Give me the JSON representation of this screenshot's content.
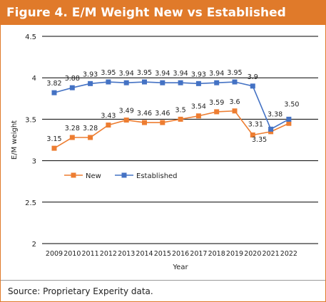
{
  "figure": {
    "title": "Figure 4. E/M Weight New vs Established",
    "source": "Source: Proprietary Experity data."
  },
  "colors": {
    "accent": "#e07a2a",
    "new": "#ed7d31",
    "established": "#4472c4",
    "grid": "#000000"
  },
  "chart_data": {
    "type": "line",
    "title": "",
    "xlabel": "Year",
    "ylabel": "E/M weight",
    "ylim": [
      2,
      4.5
    ],
    "yticks": [
      "2",
      "2.5",
      "3",
      "3.5",
      "4",
      "4.5"
    ],
    "grid": "horizontal",
    "legend_position": "center-left",
    "categories": [
      "2009",
      "2010",
      "2011",
      "2012",
      "2013",
      "2014",
      "2015",
      "2016",
      "2017",
      "2018",
      "2019",
      "2020",
      "2021",
      "2022"
    ],
    "series": [
      {
        "name": "New",
        "marker": "square",
        "values": [
          3.15,
          3.28,
          3.28,
          3.43,
          3.49,
          3.46,
          3.46,
          3.5,
          3.54,
          3.59,
          3.6,
          3.31,
          3.35,
          3.45
        ],
        "labels": [
          "3.15",
          "3.28",
          "3.28",
          "3.43",
          "3.49",
          "3.46",
          "3.46",
          "3.5",
          "3.54",
          "3.59",
          "3.6",
          "3.31",
          "3.35",
          ""
        ]
      },
      {
        "name": "Established",
        "marker": "square",
        "values": [
          3.82,
          3.88,
          3.93,
          3.95,
          3.94,
          3.95,
          3.94,
          3.94,
          3.93,
          3.94,
          3.95,
          3.9,
          3.38,
          3.5
        ],
        "labels": [
          "3.82",
          "3.88",
          "3.93",
          "3.95",
          "3.94",
          "3.95",
          "3.94",
          "3.94",
          "3.93",
          "3.94",
          "3.95",
          "3.9",
          "3.38",
          "3.50"
        ]
      }
    ]
  }
}
